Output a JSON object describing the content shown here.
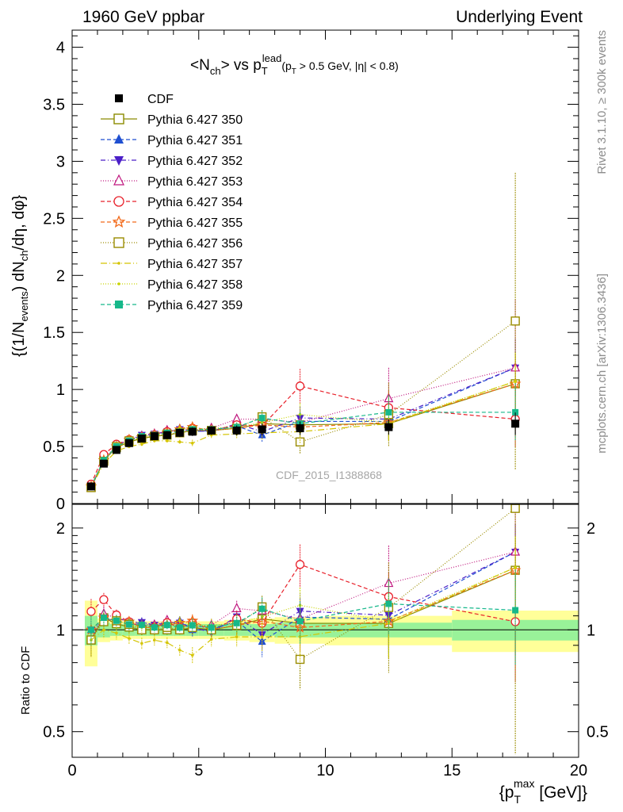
{
  "header": {
    "left": "1960 GeV ppbar",
    "right": "Underlying Event"
  },
  "side": {
    "top": "Rivet 3.1.10, ≥ 300k events",
    "bottom": "mcplots.cern.ch [arXiv:1306.3436]"
  },
  "watermark": "CDF_2015_I1388868",
  "chart_data": {
    "type": "scatter",
    "title": "<N_ch> vs p_T^lead (p_T > 0.5 GeV, |η| < 0.8)",
    "xlabel": "{p_T^max [GeV]}",
    "ylabel": "{(1/N_events) dN_ch/dη, dφ}",
    "ratio_ylabel": "Ratio to CDF",
    "xlim": [
      0,
      20
    ],
    "ylim": [
      0,
      4.15
    ],
    "ratio_ylim": [
      0.42,
      2.35
    ],
    "ratio_scale": "log",
    "xticks": [
      0,
      5,
      10,
      15,
      20
    ],
    "yticks": [
      0,
      0.5,
      1,
      1.5,
      2,
      2.5,
      3,
      3.5,
      4
    ],
    "ratio_yticks": [
      0.5,
      1,
      2
    ],
    "legend_placement": "top-left",
    "x": [
      0.75,
      1.25,
      1.75,
      2.25,
      2.75,
      3.25,
      3.75,
      4.25,
      4.75,
      5.5,
      6.5,
      7.5,
      9.0,
      12.5,
      17.5
    ],
    "bin_edges": [
      0.5,
      1.0,
      1.5,
      2.0,
      2.5,
      3.0,
      3.5,
      4.0,
      4.5,
      5.0,
      6.0,
      7.0,
      8.0,
      10.0,
      15.0,
      20.0
    ],
    "data": {
      "name": "CDF",
      "y": [
        0.15,
        0.35,
        0.47,
        0.53,
        0.57,
        0.59,
        0.6,
        0.62,
        0.63,
        0.64,
        0.64,
        0.65,
        0.66,
        0.67,
        0.7
      ]
    },
    "band_inner": [
      0.1,
      0.05,
      0.04,
      0.04,
      0.04,
      0.04,
      0.04,
      0.04,
      0.04,
      0.04,
      0.04,
      0.04,
      0.05,
      0.05,
      0.07
    ],
    "band_outer": [
      0.22,
      0.08,
      0.07,
      0.06,
      0.06,
      0.06,
      0.06,
      0.06,
      0.06,
      0.06,
      0.07,
      0.08,
      0.09,
      0.1,
      0.14
    ],
    "series": [
      {
        "name": "Pythia 6.427 350",
        "color": "#8b8b00",
        "marker": "open-square",
        "dash": "",
        "y": [
          0.14,
          0.38,
          0.49,
          0.54,
          0.57,
          0.59,
          0.6,
          0.62,
          0.64,
          0.64,
          0.66,
          0.7,
          0.69,
          0.7,
          1.05
        ],
        "err": [
          0.015,
          0.02,
          0.02,
          0.02,
          0.02,
          0.02,
          0.02,
          0.02,
          0.03,
          0.03,
          0.04,
          0.06,
          0.1,
          0.15,
          0.25
        ]
      },
      {
        "name": "Pythia 6.427 351",
        "color": "#1f4fd1",
        "marker": "triangle-up",
        "dash": "5,3",
        "y": [
          0.15,
          0.38,
          0.5,
          0.55,
          0.6,
          0.61,
          0.62,
          0.66,
          0.63,
          0.64,
          0.68,
          0.6,
          0.72,
          0.72,
          1.19
        ],
        "err": [
          0.015,
          0.02,
          0.02,
          0.02,
          0.02,
          0.02,
          0.02,
          0.02,
          0.03,
          0.03,
          0.04,
          0.06,
          0.1,
          0.15,
          0.25
        ]
      },
      {
        "name": "Pythia 6.427 352",
        "color": "#4b1fc8",
        "marker": "triangle-down",
        "dash": "6,3,1,3",
        "y": [
          0.15,
          0.37,
          0.51,
          0.56,
          0.6,
          0.61,
          0.63,
          0.65,
          0.64,
          0.63,
          0.7,
          0.63,
          0.75,
          0.74,
          1.19
        ],
        "err": [
          0.015,
          0.02,
          0.02,
          0.02,
          0.02,
          0.02,
          0.02,
          0.02,
          0.03,
          0.03,
          0.04,
          0.06,
          0.1,
          0.15,
          0.25
        ]
      },
      {
        "name": "Pythia 6.427 353",
        "color": "#c0187f",
        "marker": "open-triangle-up",
        "dash": "1,2",
        "y": [
          0.14,
          0.39,
          0.51,
          0.56,
          0.59,
          0.61,
          0.64,
          0.64,
          0.64,
          0.66,
          0.74,
          0.74,
          0.71,
          0.92,
          1.19
        ],
        "err": [
          0.015,
          0.02,
          0.02,
          0.02,
          0.02,
          0.02,
          0.02,
          0.02,
          0.03,
          0.03,
          0.04,
          0.06,
          0.1,
          0.27,
          0.6
        ]
      },
      {
        "name": "Pythia 6.427 354",
        "color": "#e8202a",
        "marker": "open-circle",
        "dash": "5,3",
        "y": [
          0.17,
          0.43,
          0.52,
          0.56,
          0.58,
          0.6,
          0.63,
          0.63,
          0.66,
          0.64,
          0.69,
          0.68,
          1.03,
          0.84,
          0.74
        ],
        "err": [
          0.015,
          0.02,
          0.02,
          0.02,
          0.02,
          0.02,
          0.02,
          0.02,
          0.03,
          0.03,
          0.04,
          0.06,
          0.15,
          0.15,
          0.25
        ]
      },
      {
        "name": "Pythia 6.427 355",
        "color": "#f26a1b",
        "marker": "open-star",
        "dash": "5,3",
        "y": [
          0.15,
          0.38,
          0.5,
          0.56,
          0.58,
          0.6,
          0.62,
          0.65,
          0.67,
          0.64,
          0.66,
          0.69,
          0.67,
          0.71,
          1.05
        ],
        "err": [
          0.015,
          0.02,
          0.02,
          0.02,
          0.02,
          0.02,
          0.02,
          0.02,
          0.03,
          0.03,
          0.04,
          0.06,
          0.1,
          0.15,
          0.25
        ]
      },
      {
        "name": "Pythia 6.427 356",
        "color": "#9a8c00",
        "marker": "open-square",
        "dash": "1,2",
        "y": [
          0.14,
          0.37,
          0.5,
          0.55,
          0.57,
          0.59,
          0.61,
          0.62,
          0.64,
          0.64,
          0.66,
          0.76,
          0.54,
          0.78,
          1.6
        ],
        "err": [
          0.015,
          0.02,
          0.02,
          0.02,
          0.02,
          0.02,
          0.02,
          0.02,
          0.03,
          0.03,
          0.04,
          0.06,
          0.1,
          0.28,
          1.3
        ]
      },
      {
        "name": "Pythia 6.427 357",
        "color": "#d4c400",
        "marker": "dot",
        "dash": "8,3,1,3",
        "y": [
          0.14,
          0.35,
          0.46,
          0.5,
          0.52,
          0.55,
          0.55,
          0.54,
          0.53,
          0.6,
          0.61,
          0.62,
          0.63,
          0.7,
          1.07
        ],
        "err": [
          0.015,
          0.02,
          0.02,
          0.02,
          0.02,
          0.02,
          0.02,
          0.02,
          0.03,
          0.03,
          0.04,
          0.06,
          0.1,
          0.15,
          0.25
        ]
      },
      {
        "name": "Pythia 6.427 358",
        "color": "#c8d400",
        "marker": "dot",
        "dash": "1,2",
        "y": [
          0.15,
          0.38,
          0.5,
          0.55,
          0.58,
          0.6,
          0.62,
          0.66,
          0.65,
          0.66,
          0.67,
          0.71,
          0.78,
          0.71,
          1.07
        ],
        "err": [
          0.015,
          0.02,
          0.02,
          0.02,
          0.02,
          0.02,
          0.02,
          0.02,
          0.03,
          0.03,
          0.04,
          0.06,
          0.1,
          0.15,
          0.25
        ]
      },
      {
        "name": "Pythia 6.427 359",
        "color": "#16b88a",
        "marker": "square",
        "dash": "5,3",
        "y": [
          0.15,
          0.38,
          0.5,
          0.55,
          0.59,
          0.6,
          0.62,
          0.63,
          0.65,
          0.65,
          0.67,
          0.75,
          0.7,
          0.8,
          0.8
        ],
        "err": [
          0.015,
          0.02,
          0.02,
          0.02,
          0.02,
          0.02,
          0.02,
          0.02,
          0.03,
          0.03,
          0.04,
          0.06,
          0.1,
          0.15,
          0.25
        ]
      }
    ]
  }
}
